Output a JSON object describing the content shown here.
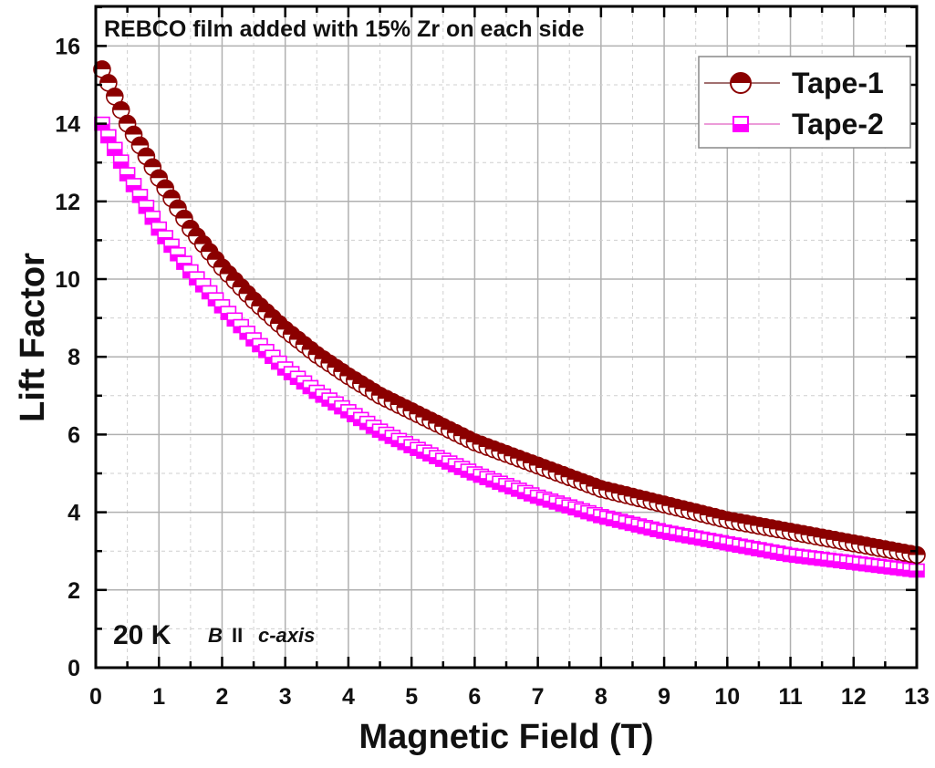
{
  "chart_data": {
    "type": "scatter",
    "title": "REBCO film added with 15% Zr on each side",
    "xlabel": "Magnetic Field (T)",
    "ylabel": "Lift Factor",
    "xlim": [
      0,
      13
    ],
    "ylim": [
      0,
      17
    ],
    "x_ticks": [
      "0",
      "1",
      "2",
      "3",
      "4",
      "5",
      "6",
      "7",
      "8",
      "9",
      "10",
      "11",
      "12",
      "13"
    ],
    "y_ticks": [
      "0",
      "2",
      "4",
      "6",
      "8",
      "10",
      "12",
      "14",
      "16"
    ],
    "grid": true,
    "legend_position": "upper right",
    "annotations": {
      "temperature": "20 K",
      "orientation_b": "B",
      "orientation_sym": "II",
      "orientation_axis": "c-axis"
    },
    "x": [
      0.1,
      0.5,
      1,
      1.5,
      2,
      2.5,
      3,
      3.5,
      4,
      4.5,
      5,
      5.5,
      6,
      6.5,
      7,
      7.5,
      8,
      8.5,
      9,
      9.5,
      10,
      10.5,
      11,
      11.5,
      12,
      12.5,
      13
    ],
    "series": [
      {
        "name": "Tape-1",
        "marker": "half-filled-circle",
        "color": "#8b0000",
        "values": [
          15.4,
          14.0,
          12.6,
          11.3,
          10.3,
          9.45,
          8.7,
          8.05,
          7.5,
          7.0,
          6.6,
          6.2,
          5.8,
          5.5,
          5.2,
          4.9,
          4.6,
          4.4,
          4.2,
          4.0,
          3.8,
          3.65,
          3.5,
          3.35,
          3.2,
          3.05,
          2.9
        ]
      },
      {
        "name": "Tape-2",
        "marker": "half-filled-square",
        "color": "#ff00ff",
        "values": [
          14.0,
          12.7,
          11.3,
          10.2,
          9.3,
          8.45,
          7.7,
          7.1,
          6.6,
          6.1,
          5.7,
          5.35,
          5.0,
          4.7,
          4.4,
          4.15,
          3.9,
          3.7,
          3.5,
          3.35,
          3.2,
          3.05,
          2.9,
          2.8,
          2.7,
          2.6,
          2.5
        ]
      }
    ]
  }
}
